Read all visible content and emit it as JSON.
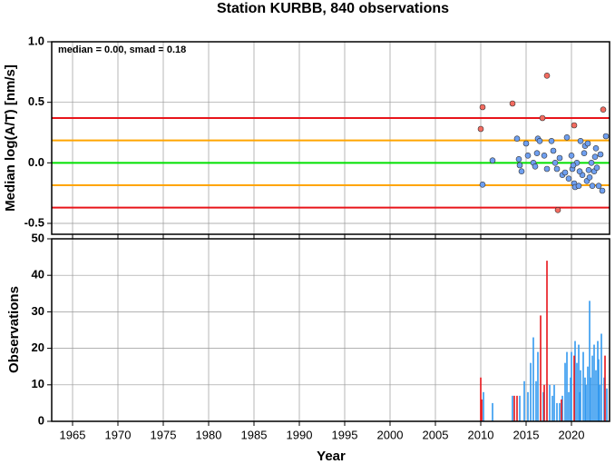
{
  "chart_data": [
    {
      "type": "scatter",
      "title": "Station KURBB, 840 observations",
      "y_label": "Median log(A/T) [nm/s]",
      "annotation": "median = 0.00, smad = 0.18",
      "xlim": [
        1962.7,
        2024.2
      ],
      "xticks": [
        1965,
        1970,
        1975,
        1980,
        1985,
        1990,
        1995,
        2000,
        2005,
        2010,
        2015,
        2020
      ],
      "ylim": [
        -0.59,
        1.0
      ],
      "yticks": [
        {
          "value": 1,
          "label": "1.0"
        },
        0.5,
        {
          "value": 0,
          "label": "0.0"
        },
        -0.5
      ],
      "grid": true,
      "reference_lines": [
        {
          "value": 0.37,
          "color": "#e8141a"
        },
        {
          "value": 0.185,
          "color": "#ffa500"
        },
        {
          "value": 0,
          "color": "#00e000"
        },
        {
          "value": -0.185,
          "color": "#ffa500"
        },
        {
          "value": -0.37,
          "color": "#e8141a"
        }
      ],
      "series": [
        {
          "color": "#f26b60",
          "x": [
            2010,
            2010.2,
            2013.5,
            2016.8,
            2017.3,
            2018.5,
            2020.3,
            2023.5
          ],
          "values": [
            0.28,
            0.46,
            0.49,
            0.37,
            0.72,
            -0.39,
            0.31,
            0.44
          ]
        },
        {
          "color": "#6f9ff0",
          "x": [
            2010.2,
            2011.3,
            2014,
            2014.2,
            2014.3,
            2014.5,
            2015,
            2015.2,
            2015.8,
            2016,
            2016.2,
            2016.3,
            2016.5,
            2017,
            2017.3,
            2017.8,
            2018,
            2018.2,
            2018.4,
            2018.7,
            2019,
            2019.3,
            2019.5,
            2019.7,
            2020,
            2020.1,
            2020.3,
            2020.4,
            2020.6,
            2020.8,
            2021,
            2021.2,
            2021.4,
            2021.5,
            2021.7,
            2021.8,
            2022,
            2022.2,
            2022.3,
            2022.5,
            2022.7,
            2022.8,
            2023,
            2023.2,
            2023.4,
            2023.8,
            2020.2,
            2020.9,
            2021.9,
            2022.6
          ],
          "values": [
            -0.18,
            0.02,
            0.2,
            0.03,
            -0.02,
            -0.07,
            0.16,
            0.06,
            0.0,
            -0.03,
            0.08,
            0.2,
            0.18,
            0.06,
            -0.05,
            0.18,
            0.1,
            0.0,
            -0.05,
            0.04,
            -0.1,
            -0.08,
            0.21,
            -0.13,
            0.06,
            -0.05,
            -0.17,
            -0.2,
            0.0,
            -0.19,
            0.18,
            -0.1,
            0.08,
            0.14,
            -0.15,
            0.16,
            -0.12,
            0.0,
            -0.19,
            -0.07,
            0.12,
            -0.04,
            -0.19,
            0.07,
            -0.23,
            0.22,
            -0.02,
            -0.07,
            -0.06,
            0.05
          ]
        }
      ]
    },
    {
      "type": "bar",
      "x_label": "Year",
      "y_label": "Observations",
      "xlim": [
        1962.7,
        2024.2
      ],
      "xticks": [
        1965,
        1970,
        1975,
        1980,
        1985,
        1990,
        1995,
        2000,
        2005,
        2010,
        2015,
        2020
      ],
      "ylim": [
        0,
        50
      ],
      "yticks": [
        0,
        10,
        20,
        30,
        40,
        50
      ],
      "grid": true,
      "series": [
        {
          "color": "#3399ee",
          "x": [
            2010.3,
            2011.3,
            2013.5,
            2014.3,
            2014.8,
            2015.2,
            2015.5,
            2015.8,
            2016.1,
            2016.3,
            2016.9,
            2017.6,
            2017.9,
            2018.1,
            2018.4,
            2018.7,
            2019,
            2019.3,
            2019.5,
            2019.7,
            2019.9,
            2020,
            2020.4,
            2020.6,
            2020.8,
            2020.9,
            2021,
            2021.3,
            2021.5,
            2021.6,
            2021.8,
            2022,
            2022.1,
            2022.3,
            2022.5,
            2022.7,
            2022.9,
            2023,
            2023.1,
            2023.3,
            2023.6,
            2023.9
          ],
          "values": [
            8,
            5,
            7,
            7,
            11,
            8,
            16,
            23,
            11,
            19,
            8,
            10,
            7,
            10,
            5,
            5,
            7,
            16,
            19,
            8,
            12,
            19,
            22,
            16,
            21,
            8,
            14,
            19,
            12,
            10,
            15,
            33,
            12,
            18,
            21,
            14,
            22,
            17,
            10,
            24,
            12,
            9
          ]
        },
        {
          "color": "#e8141a",
          "x": [
            2010,
            2010.1,
            2013.7,
            2014,
            2016.6,
            2017,
            2017.3,
            2018.9,
            2020.3,
            2023.7
          ],
          "values": [
            12,
            6,
            7,
            7,
            29,
            10,
            44,
            6,
            18,
            18
          ]
        }
      ]
    }
  ]
}
